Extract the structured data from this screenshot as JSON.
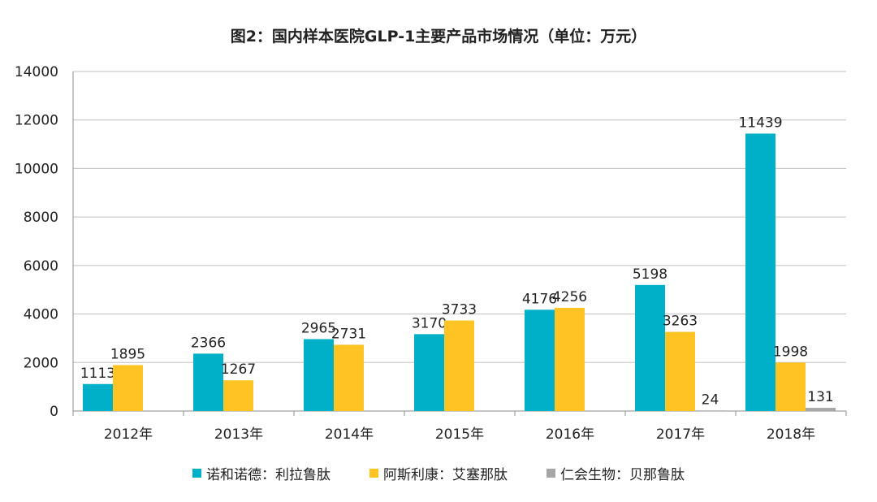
{
  "chart_data": {
    "type": "bar",
    "title": "图2：国内样本医院GLP-1主要产品市场情况（单位：万元）",
    "categories": [
      "2012年",
      "2013年",
      "2014年",
      "2015年",
      "2016年",
      "2017年",
      "2018年"
    ],
    "series": [
      {
        "name": "诺和诺德：利拉鲁肽",
        "color": "#00B0C8",
        "values": [
          1113,
          2366,
          2965,
          3170,
          4176,
          5198,
          11439
        ]
      },
      {
        "name": "阿斯利康：艾塞那肽",
        "color": "#FFC423",
        "values": [
          1895,
          1267,
          2731,
          3733,
          4256,
          3263,
          1998
        ]
      },
      {
        "name": "仁会生物：贝那鲁肽",
        "color": "#A6A6A6",
        "values": [
          null,
          null,
          null,
          null,
          null,
          24,
          131
        ]
      }
    ],
    "yticks": [
      0,
      2000,
      4000,
      6000,
      8000,
      10000,
      12000,
      14000
    ],
    "ylim": [
      0,
      14000
    ],
    "grid": true,
    "legend_position": "bottom"
  }
}
